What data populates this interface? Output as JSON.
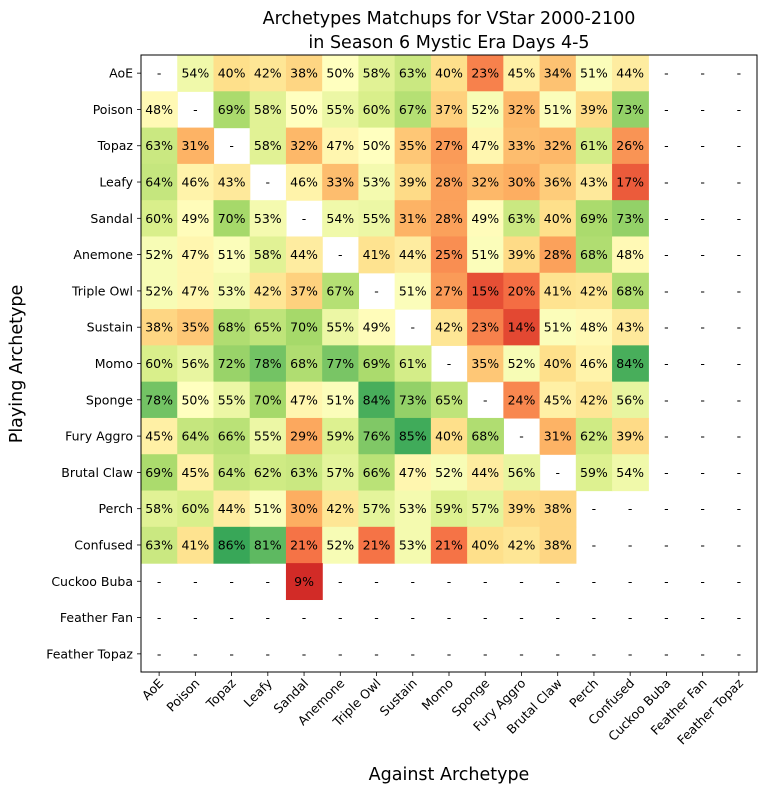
{
  "chart_data": {
    "type": "heatmap",
    "title_line1": "Archetypes Matchups for VStar 2000-2100",
    "title_line2": "in Season 6 Mystic Era Days 4-5",
    "xlabel": "Against Archetype",
    "ylabel": "Playing Archetype",
    "rows": [
      "AoE",
      "Poison",
      "Topaz",
      "Leafy",
      "Sandal",
      "Anemone",
      "Triple Owl",
      "Sustain",
      "Momo",
      "Sponge",
      "Fury Aggro",
      "Brutal Claw",
      "Perch",
      "Confused",
      "Cuckoo Buba",
      "Feather Fan",
      "Feather Topaz"
    ],
    "cols": [
      "AoE",
      "Poison",
      "Topaz",
      "Leafy",
      "Sandal",
      "Anemone",
      "Triple Owl",
      "Sustain",
      "Momo",
      "Sponge",
      "Fury Aggro",
      "Brutal Claw",
      "Perch",
      "Confused",
      "Cuckoo Buba",
      "Feather Fan",
      "Feather Topaz"
    ],
    "missing_label": "-",
    "color_scale": {
      "min": 0,
      "max": 100,
      "colormap": "RdYlGn"
    },
    "values": [
      [
        null,
        54,
        40,
        42,
        38,
        50,
        58,
        63,
        40,
        23,
        45,
        34,
        51,
        44,
        null,
        null,
        null
      ],
      [
        48,
        null,
        69,
        58,
        50,
        55,
        60,
        67,
        37,
        52,
        32,
        51,
        39,
        73,
        null,
        null,
        null
      ],
      [
        63,
        31,
        null,
        58,
        32,
        47,
        50,
        35,
        27,
        47,
        33,
        32,
        61,
        26,
        null,
        null,
        null
      ],
      [
        64,
        46,
        43,
        null,
        46,
        33,
        53,
        39,
        28,
        32,
        30,
        36,
        43,
        17,
        null,
        null,
        null
      ],
      [
        60,
        49,
        70,
        53,
        null,
        54,
        55,
        31,
        28,
        49,
        63,
        40,
        69,
        73,
        null,
        null,
        null
      ],
      [
        52,
        47,
        51,
        58,
        44,
        null,
        41,
        44,
        25,
        51,
        39,
        28,
        68,
        48,
        null,
        null,
        null
      ],
      [
        52,
        47,
        53,
        42,
        37,
        67,
        null,
        51,
        27,
        15,
        20,
        41,
        42,
        68,
        null,
        null,
        null
      ],
      [
        38,
        35,
        68,
        65,
        70,
        55,
        49,
        null,
        42,
        23,
        14,
        51,
        48,
        43,
        null,
        null,
        null
      ],
      [
        60,
        56,
        72,
        78,
        68,
        77,
        69,
        61,
        null,
        35,
        52,
        40,
        46,
        84,
        null,
        null,
        null
      ],
      [
        78,
        50,
        55,
        70,
        47,
        51,
        84,
        73,
        65,
        null,
        24,
        45,
        42,
        56,
        null,
        null,
        null
      ],
      [
        45,
        64,
        66,
        55,
        29,
        59,
        76,
        85,
        40,
        68,
        null,
        31,
        62,
        39,
        null,
        null,
        null
      ],
      [
        69,
        45,
        64,
        62,
        63,
        57,
        66,
        47,
        52,
        44,
        56,
        null,
        59,
        54,
        null,
        null,
        null
      ],
      [
        58,
        60,
        44,
        51,
        30,
        42,
        57,
        53,
        59,
        57,
        39,
        38,
        null,
        null,
        null,
        null,
        null
      ],
      [
        63,
        41,
        86,
        81,
        21,
        52,
        21,
        53,
        21,
        40,
        42,
        38,
        null,
        null,
        null,
        null,
        null
      ],
      [
        null,
        null,
        null,
        null,
        9,
        null,
        null,
        null,
        null,
        null,
        null,
        null,
        null,
        null,
        null,
        null,
        null
      ],
      [
        null,
        null,
        null,
        null,
        null,
        null,
        null,
        null,
        null,
        null,
        null,
        null,
        null,
        null,
        null,
        null,
        null
      ],
      [
        null,
        null,
        null,
        null,
        null,
        null,
        null,
        null,
        null,
        null,
        null,
        null,
        null,
        null,
        null,
        null,
        null
      ]
    ]
  }
}
